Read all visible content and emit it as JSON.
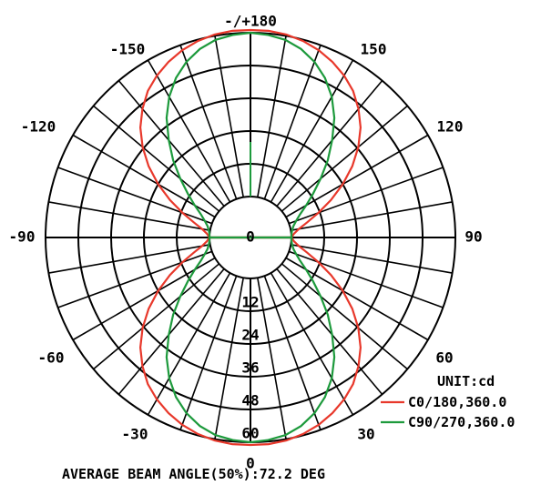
{
  "chart_data": {
    "type": "polar",
    "unit_label": "UNIT:cd",
    "footer": "AVERAGE BEAM ANGLE(50%):72.2 DEG",
    "angle_labels": [
      {
        "angle": 180,
        "text": "-/+180"
      },
      {
        "angle": 150,
        "text": "150"
      },
      {
        "angle": -150,
        "text": "-150"
      },
      {
        "angle": 120,
        "text": "120"
      },
      {
        "angle": -120,
        "text": "-120"
      },
      {
        "angle": 90,
        "text": "90"
      },
      {
        "angle": -90,
        "text": "-90"
      },
      {
        "angle": 60,
        "text": "60"
      },
      {
        "angle": -60,
        "text": "-60"
      },
      {
        "angle": 30,
        "text": "30"
      },
      {
        "angle": -30,
        "text": "-30"
      },
      {
        "angle": 0,
        "text": "0"
      }
    ],
    "radial_ticks": [
      0,
      12,
      24,
      36,
      48,
      60
    ],
    "radial_range": [
      0,
      60
    ],
    "spoke_step_deg": 10,
    "series": [
      {
        "name": "C0/180,360.0",
        "color": "#e8382b",
        "angles": [
          0,
          5,
          10,
          15,
          20,
          25,
          30,
          35,
          40,
          45,
          50,
          55,
          60,
          65,
          70,
          75,
          80,
          85,
          90
        ],
        "values": [
          61,
          61,
          60.5,
          59.5,
          58,
          56,
          53.5,
          50.5,
          46.5,
          42,
          36.5,
          30.5,
          24,
          17.5,
          11.5,
          6.5,
          3,
          1,
          0
        ]
      },
      {
        "name": "C90/270,360.0",
        "color": "#1d9a3c",
        "angles": [
          0,
          5,
          10,
          15,
          20,
          25,
          30,
          35,
          40,
          45,
          50,
          55,
          60,
          65,
          70,
          75,
          80,
          85,
          90
        ],
        "values": [
          60,
          59.5,
          58.5,
          56.5,
          53.5,
          49.5,
          44.5,
          38.5,
          31.5,
          25,
          18.5,
          13,
          8.5,
          5,
          2.8,
          1.3,
          0.5,
          0.1,
          0
        ]
      }
    ]
  }
}
